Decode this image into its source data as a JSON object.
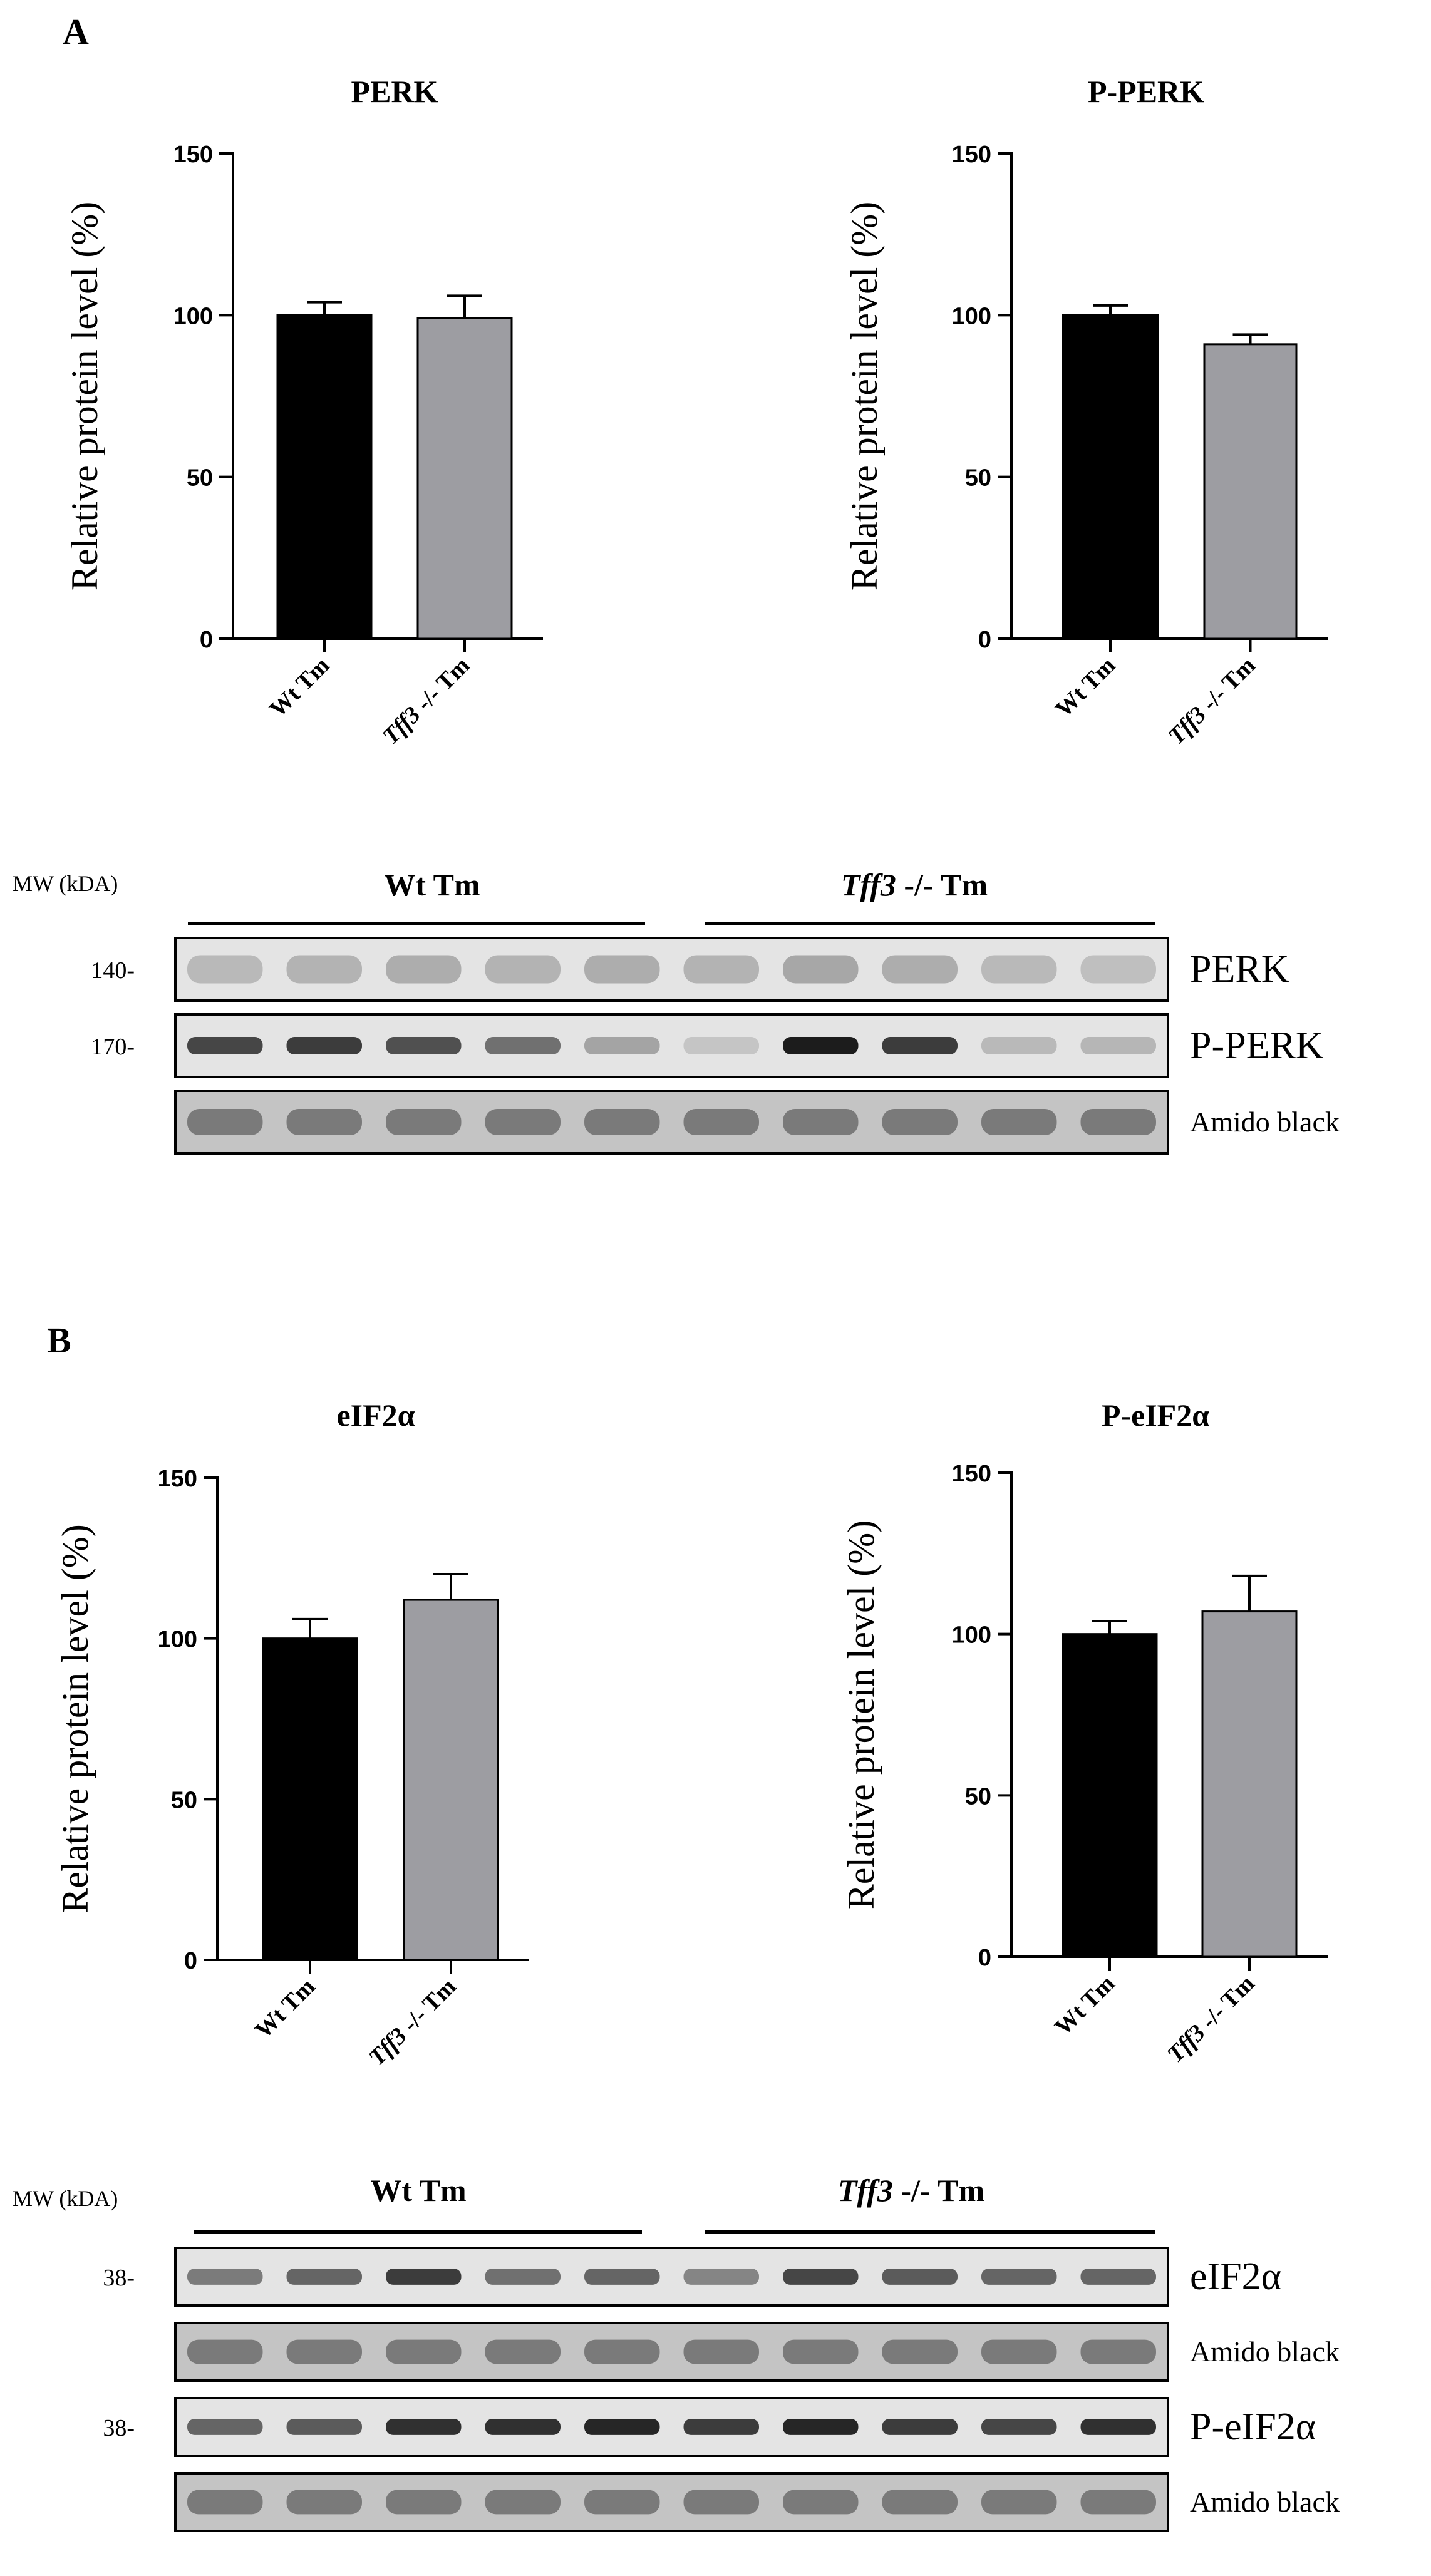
{
  "panels": [
    {
      "letter": "A"
    },
    {
      "letter": "B"
    }
  ],
  "chart_data": [
    {
      "type": "bar",
      "title": "PERK",
      "ylabel": "Relative protein level (%)",
      "ylim": [
        0,
        150
      ],
      "yticks": [
        0,
        50,
        100,
        150
      ],
      "categories": [
        "Wt Tm",
        "Tff3 -/- Tm"
      ],
      "values": [
        100,
        99
      ],
      "errors": [
        4,
        7
      ],
      "colors": [
        "#000000",
        "#9d9da2"
      ]
    },
    {
      "type": "bar",
      "title": "P-PERK",
      "ylabel": "Relative protein level (%)",
      "ylim": [
        0,
        150
      ],
      "yticks": [
        0,
        50,
        100,
        150
      ],
      "categories": [
        "Wt Tm",
        "Tff3 -/- Tm"
      ],
      "values": [
        100,
        91
      ],
      "errors": [
        3,
        3
      ],
      "colors": [
        "#000000",
        "#9d9da2"
      ]
    },
    {
      "type": "bar",
      "title": "eIF2α",
      "ylabel": "Relative protein level (%)",
      "ylim": [
        0,
        150
      ],
      "yticks": [
        0,
        50,
        100,
        150
      ],
      "categories": [
        "Wt Tm",
        "Tff3 -/- Tm"
      ],
      "values": [
        100,
        112
      ],
      "errors": [
        6,
        8
      ],
      "colors": [
        "#000000",
        "#9d9da2"
      ]
    },
    {
      "type": "bar",
      "title": "P-eIF2α",
      "ylabel": "Relative protein level (%)",
      "ylim": [
        0,
        150
      ],
      "yticks": [
        0,
        50,
        100,
        150
      ],
      "categories": [
        "Wt Tm",
        "Tff3 -/- Tm"
      ],
      "values": [
        100,
        107
      ],
      "errors": [
        4,
        11
      ],
      "colors": [
        "#000000",
        "#9d9da2"
      ]
    }
  ],
  "blots": [
    {
      "mw_header": "MW (kDA)",
      "groups": [
        {
          "label": "Wt Tm",
          "italic_prefix": ""
        },
        {
          "label": " -/- Tm",
          "italic_prefix": "Tff3"
        }
      ],
      "rows": [
        {
          "marker": "140-",
          "label": "PERK",
          "kind": "faint",
          "intensities": [
            0.35,
            0.4,
            0.45,
            0.4,
            0.45,
            0.4,
            0.5,
            0.45,
            0.35,
            0.3
          ]
        },
        {
          "marker": "170-",
          "label": "P-PERK",
          "kind": "band",
          "intensities": [
            0.75,
            0.8,
            0.7,
            0.55,
            0.3,
            0.15,
            0.95,
            0.8,
            0.2,
            0.22
          ]
        },
        {
          "marker": "",
          "label": "Amido black",
          "kind": "amido",
          "intensities": [
            0.6,
            0.6,
            0.6,
            0.6,
            0.6,
            0.6,
            0.6,
            0.6,
            0.6,
            0.6
          ]
        }
      ]
    },
    {
      "mw_header": "MW (kDA)",
      "groups": [
        {
          "label": "Wt Tm",
          "italic_prefix": ""
        },
        {
          "label": " -/- Tm",
          "italic_prefix": "Tff3"
        }
      ],
      "rows": [
        {
          "marker": "38-",
          "label": "eIF2α",
          "kind": "band",
          "intensities": [
            0.5,
            0.6,
            0.8,
            0.55,
            0.6,
            0.45,
            0.75,
            0.65,
            0.6,
            0.6
          ]
        },
        {
          "marker": "",
          "label": "Amido black",
          "kind": "amido",
          "intensities": [
            0.6,
            0.6,
            0.6,
            0.6,
            0.6,
            0.6,
            0.6,
            0.6,
            0.6,
            0.6
          ]
        },
        {
          "marker": "38-",
          "label": "P-eIF2α",
          "kind": "band",
          "intensities": [
            0.6,
            0.65,
            0.85,
            0.85,
            0.9,
            0.8,
            0.9,
            0.8,
            0.75,
            0.85
          ]
        },
        {
          "marker": "",
          "label": "Amido black",
          "kind": "amido",
          "intensities": [
            0.6,
            0.6,
            0.6,
            0.6,
            0.6,
            0.6,
            0.6,
            0.6,
            0.6,
            0.6
          ]
        }
      ]
    }
  ]
}
